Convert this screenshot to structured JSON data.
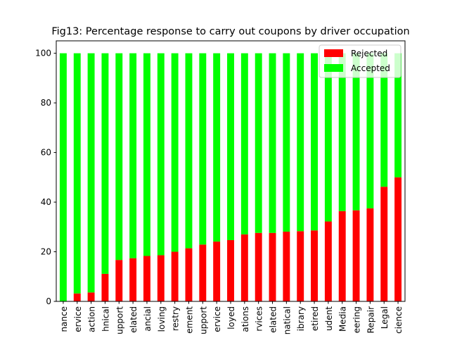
{
  "chart_data": {
    "type": "bar",
    "stacked": true,
    "title": "Fig13: Percentage response to carry out coupons by driver occupation",
    "xlabel": "",
    "ylabel": "",
    "ylim": [
      0,
      105
    ],
    "yticks": [
      0,
      20,
      40,
      60,
      80,
      100
    ],
    "grid": false,
    "legend_position": "top-right",
    "categories": [
      "nance",
      "ervice",
      "action",
      "hnical",
      "upport",
      "elated",
      "ancial",
      "loving",
      "restry",
      "ement",
      "upport",
      "ervice",
      "loyed",
      "ations",
      "rvices",
      "elated",
      "natical",
      "ibrary",
      "etired",
      "udent",
      "Media",
      "eering",
      "Repair",
      "Legal",
      "cience"
    ],
    "series": [
      {
        "name": "Rejected",
        "color": "#ff0000",
        "values": [
          0,
          3.2,
          3.6,
          11.1,
          16.7,
          17.4,
          18.3,
          18.6,
          20.0,
          21.4,
          22.9,
          24.1,
          24.7,
          27.0,
          27.6,
          27.6,
          28.1,
          28.3,
          28.6,
          32.2,
          36.4,
          36.7,
          37.5,
          46.2,
          50.0
        ]
      },
      {
        "name": "Accepted",
        "color": "#00ff00",
        "values": [
          100,
          96.8,
          96.4,
          88.9,
          83.3,
          82.6,
          81.7,
          81.4,
          80.0,
          78.6,
          77.1,
          75.9,
          75.3,
          73.0,
          72.4,
          72.4,
          71.9,
          71.7,
          71.4,
          67.8,
          63.6,
          63.3,
          62.5,
          53.8,
          50.0
        ]
      }
    ]
  }
}
